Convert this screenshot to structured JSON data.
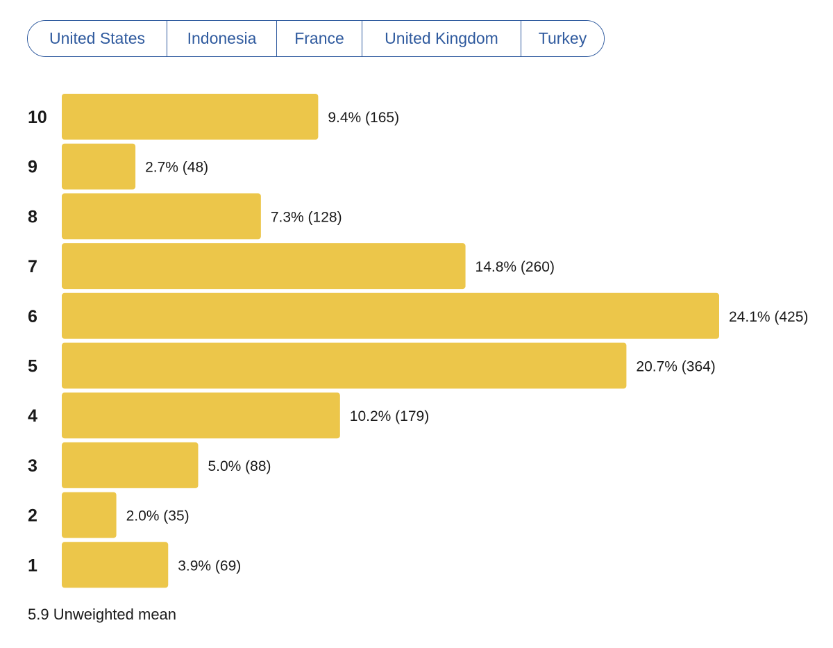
{
  "tabs": [
    "United States",
    "Indonesia",
    "France",
    "United Kingdom",
    "Turkey"
  ],
  "colors": {
    "bar": "#ecc64a",
    "tab_accent": "#2f5a9e"
  },
  "chart_data": {
    "type": "bar",
    "orientation": "horizontal",
    "categories": [
      "10",
      "9",
      "8",
      "7",
      "6",
      "5",
      "4",
      "3",
      "2",
      "1"
    ],
    "values": [
      9.4,
      2.7,
      7.3,
      14.8,
      24.1,
      20.7,
      10.2,
      5.0,
      2.0,
      3.9
    ],
    "counts": [
      165,
      48,
      128,
      260,
      425,
      364,
      179,
      88,
      35,
      69
    ],
    "data_labels": [
      "9.4% (165)",
      "2.7% (48)",
      "7.3% (128)",
      "14.8% (260)",
      "24.1% (425)",
      "20.7% (364)",
      "10.2% (179)",
      "5.0% (88)",
      "2.0% (35)",
      "3.9% (69)"
    ],
    "unit": "%",
    "xlim": [
      0,
      24.1
    ]
  },
  "footer": {
    "mean_text": "5.9 Unweighted mean"
  }
}
